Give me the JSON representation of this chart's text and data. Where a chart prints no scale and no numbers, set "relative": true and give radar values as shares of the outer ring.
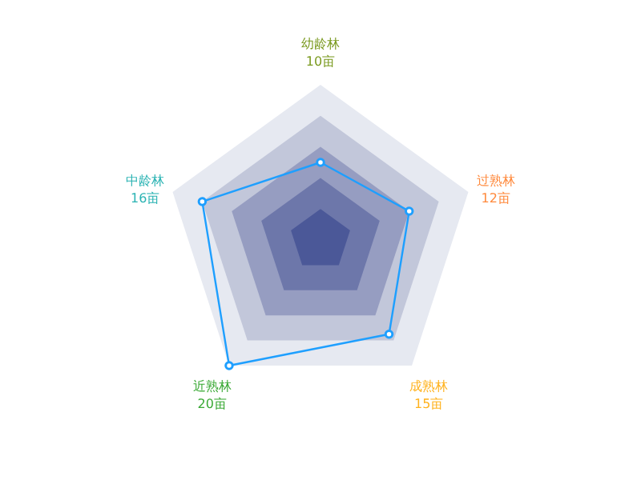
{
  "chart_data": {
    "type": "radar",
    "categories": [
      "幼龄林\n10亩",
      "过熟林\n12亩",
      "成熟林\n15亩",
      "近熟林\n20亩",
      "中龄林\n16亩"
    ],
    "series": [
      {
        "color": "#1e9fff",
        "values": [
          0.5,
          0.6,
          0.75,
          1,
          0.8
        ]
      }
    ],
    "relative": true,
    "marker": "circle",
    "grid": true
  }
}
